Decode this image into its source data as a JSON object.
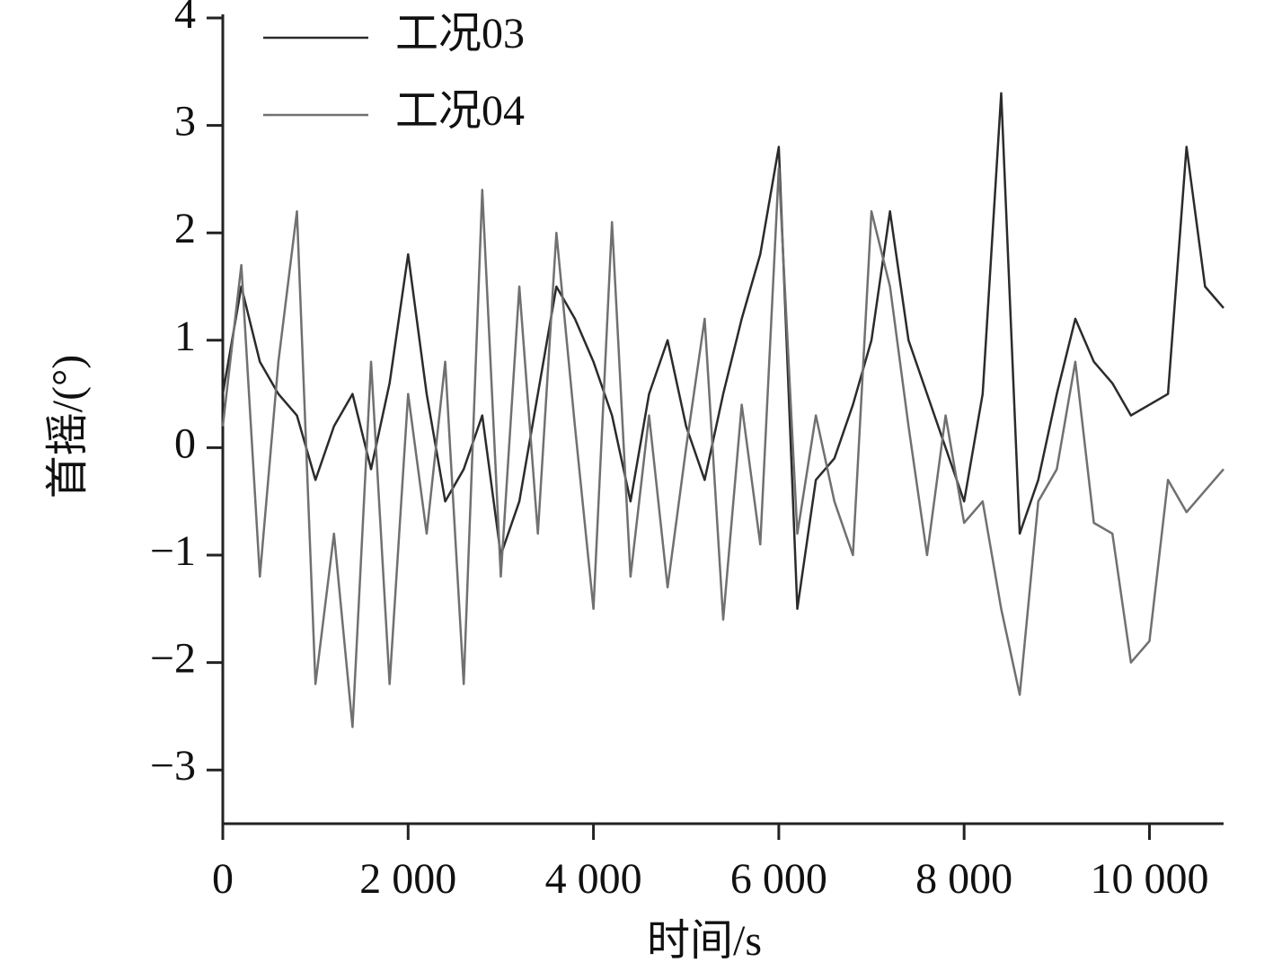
{
  "chart_data": {
    "type": "line",
    "x_label": "时间/s",
    "y_label": "首摇/(°)",
    "x": [
      0,
      200,
      400,
      600,
      800,
      1000,
      1200,
      1400,
      1600,
      1800,
      2000,
      2200,
      2400,
      2600,
      2800,
      3000,
      3200,
      3400,
      3600,
      3800,
      4000,
      4200,
      4400,
      4600,
      4800,
      5000,
      5200,
      5400,
      5600,
      5800,
      6000,
      6200,
      6400,
      6600,
      6800,
      7000,
      7200,
      7400,
      7600,
      7800,
      8000,
      8200,
      8400,
      8600,
      8800,
      9000,
      9200,
      9400,
      9600,
      9800,
      10000,
      10200,
      10400,
      10600,
      10800
    ],
    "series": [
      {
        "name": "工况03",
        "color": "#2b2b2b",
        "values": [
          0.5,
          1.5,
          0.8,
          0.5,
          0.3,
          -0.3,
          0.2,
          0.5,
          -0.2,
          0.6,
          1.8,
          0.5,
          -0.5,
          -0.2,
          0.3,
          -1.0,
          -0.5,
          0.5,
          1.5,
          1.2,
          0.8,
          0.3,
          -0.5,
          0.5,
          1.0,
          0.2,
          -0.3,
          0.5,
          1.2,
          1.8,
          2.8,
          -1.5,
          -0.3,
          -0.1,
          0.4,
          1.0,
          2.2,
          1.0,
          0.5,
          0.0,
          -0.5,
          0.5,
          3.3,
          -0.8,
          -0.3,
          0.5,
          1.2,
          0.8,
          0.6,
          0.3,
          0.4,
          0.5,
          2.8,
          1.5,
          1.3
        ]
      },
      {
        "name": "工况04",
        "color": "#707070",
        "values": [
          0.2,
          1.7,
          -1.2,
          0.8,
          2.2,
          -2.2,
          -0.8,
          -2.6,
          0.8,
          -2.2,
          0.5,
          -0.8,
          0.8,
          -2.2,
          2.4,
          -1.2,
          1.5,
          -0.8,
          2.0,
          0.2,
          -1.5,
          2.1,
          -1.2,
          0.3,
          -1.3,
          0.0,
          1.2,
          -1.6,
          0.4,
          -0.9,
          2.6,
          -0.8,
          0.3,
          -0.5,
          -1.0,
          2.2,
          1.5,
          0.2,
          -1.0,
          0.3,
          -0.7,
          -0.5,
          -1.5,
          -2.3,
          -0.5,
          -0.2,
          0.8,
          -0.7,
          -0.8,
          -2.0,
          -1.8,
          -0.3,
          -0.6,
          -0.4,
          -0.2
        ]
      }
    ],
    "xlim": [
      0,
      10800
    ],
    "xticks": [
      0,
      {
        "value": 2000,
        "label": "2 000"
      },
      {
        "value": 4000,
        "label": "4 000"
      },
      {
        "value": 6000,
        "label": "6 000"
      },
      {
        "value": 8000,
        "label": "8 000"
      },
      {
        "value": 10000,
        "label": "10 000"
      }
    ],
    "ylim": [
      -3.5,
      4
    ],
    "yticks": [
      {
        "value": -3,
        "label": "−3"
      },
      {
        "value": -2,
        "label": "−2"
      },
      {
        "value": -1,
        "label": "−1"
      },
      0,
      1,
      2,
      3,
      4
    ],
    "legend": "top-left",
    "grid": false
  }
}
